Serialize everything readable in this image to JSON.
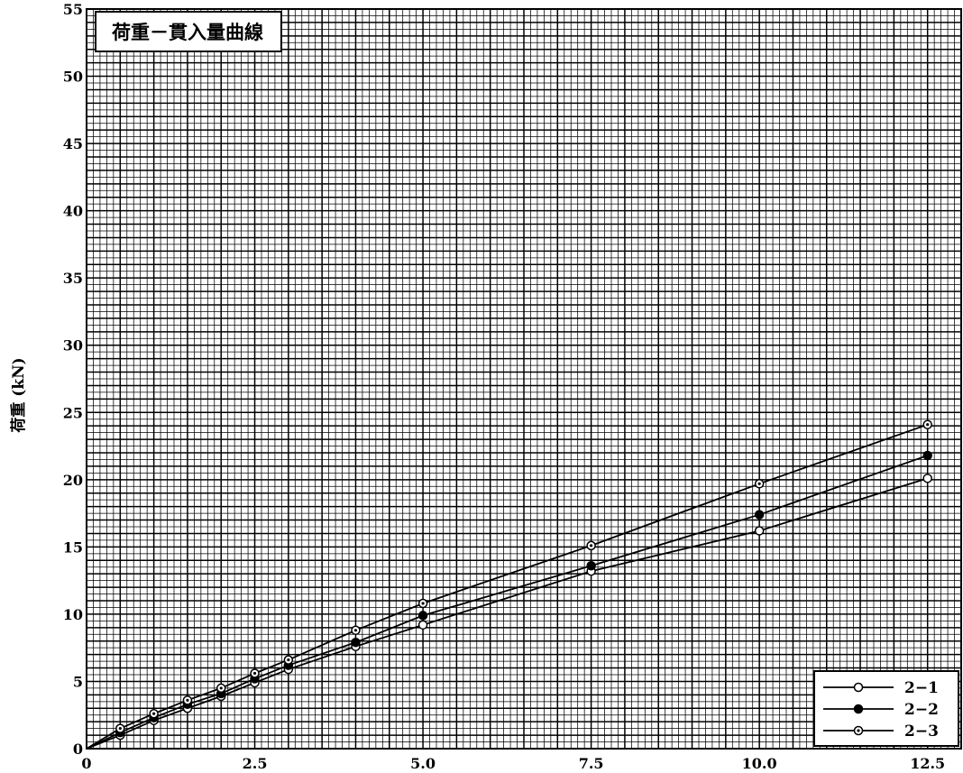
{
  "chart_data": {
    "type": "line",
    "title": "荷重－貫入量曲線",
    "ylabel": "荷重 (kN)",
    "xlabel": "",
    "xlim": [
      0,
      13
    ],
    "ylim": [
      0,
      55
    ],
    "x_ticks": [
      "0",
      "2.5",
      "5.0",
      "7.5",
      "10.0",
      "12.5"
    ],
    "y_ticks": [
      "0",
      "5",
      "10",
      "15",
      "20",
      "25",
      "30",
      "35",
      "40",
      "45",
      "50",
      "55"
    ],
    "grid": true,
    "legend_position": "bottom-right",
    "series": [
      {
        "name": "2−1",
        "marker": "open-circle",
        "x": [
          0,
          0.5,
          1.0,
          1.5,
          2.0,
          2.5,
          3.0,
          4.0,
          5.0,
          7.5,
          10.0,
          12.5
        ],
        "y": [
          0,
          1.0,
          2.1,
          3.0,
          3.9,
          4.9,
          5.9,
          7.6,
          9.2,
          13.2,
          16.2,
          20.1
        ]
      },
      {
        "name": "2−2",
        "marker": "filled-circle",
        "x": [
          0,
          0.5,
          1.0,
          1.5,
          2.0,
          2.5,
          3.0,
          4.0,
          5.0,
          7.5,
          10.0,
          12.5
        ],
        "y": [
          0,
          1.2,
          2.3,
          3.3,
          4.1,
          5.2,
          6.2,
          7.9,
          9.9,
          13.6,
          17.4,
          21.8
        ]
      },
      {
        "name": "2−3",
        "marker": "dotted-circle",
        "x": [
          0,
          0.5,
          1.0,
          1.5,
          2.0,
          2.5,
          3.0,
          4.0,
          5.0,
          7.5,
          10.0,
          12.5
        ],
        "y": [
          0,
          1.5,
          2.6,
          3.6,
          4.5,
          5.6,
          6.6,
          8.8,
          10.8,
          15.1,
          19.7,
          24.1
        ]
      }
    ]
  }
}
